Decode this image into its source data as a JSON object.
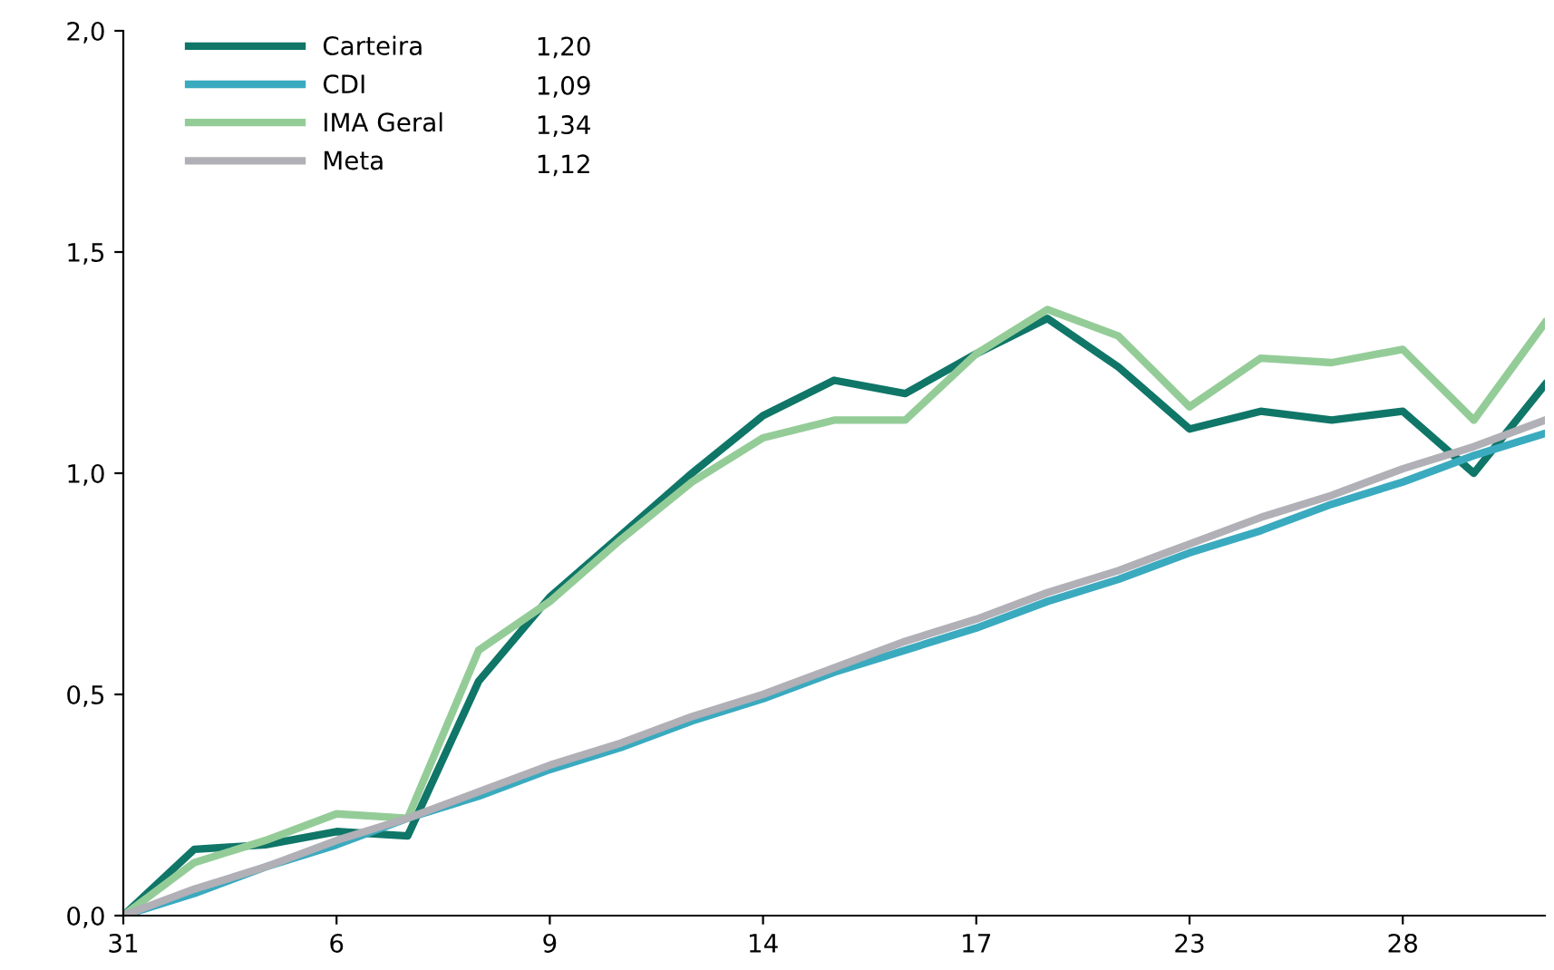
{
  "chart_data": {
    "type": "line",
    "categories": [
      "31",
      null,
      null,
      "6",
      null,
      null,
      "9",
      null,
      null,
      "14",
      null,
      null,
      "17",
      null,
      null,
      "23",
      null,
      null,
      "28",
      null,
      null
    ],
    "series": [
      {
        "name": "Carteira",
        "color": "#0f7668",
        "values": [
          0,
          0.15,
          0.16,
          0.19,
          0.18,
          0.53,
          0.72,
          0.86,
          1.0,
          1.13,
          1.21,
          1.18,
          1.27,
          1.35,
          1.24,
          1.1,
          1.14,
          1.12,
          1.14,
          1.0,
          1.2
        ]
      },
      {
        "name": "CDI",
        "color": "#3aaabf",
        "values": [
          0,
          0.05,
          0.11,
          0.16,
          0.22,
          0.27,
          0.33,
          0.38,
          0.44,
          0.49,
          0.55,
          0.6,
          0.65,
          0.71,
          0.76,
          0.82,
          0.87,
          0.93,
          0.98,
          1.04,
          1.09
        ]
      },
      {
        "name": "IMA Geral",
        "color": "#94cc98",
        "values": [
          0,
          0.12,
          0.17,
          0.23,
          0.22,
          0.6,
          0.71,
          0.85,
          0.98,
          1.08,
          1.12,
          1.12,
          1.27,
          1.37,
          1.31,
          1.15,
          1.26,
          1.25,
          1.28,
          1.12,
          1.34
        ]
      },
      {
        "name": "Meta",
        "color": "#b0b0b6",
        "values": [
          0,
          0.06,
          0.11,
          0.17,
          0.22,
          0.28,
          0.34,
          0.39,
          0.45,
          0.5,
          0.56,
          0.62,
          0.67,
          0.73,
          0.78,
          0.84,
          0.9,
          0.95,
          1.01,
          1.06,
          1.12
        ]
      }
    ],
    "annotations": [
      "1,20",
      "1,09",
      "1,34",
      "1,12"
    ],
    "ylim": [
      0,
      2
    ],
    "yticks": [
      {
        "value": 0,
        "label": "0,0"
      },
      {
        "value": 0.5,
        "label": "0,5"
      },
      {
        "value": 1,
        "label": "1,0"
      },
      {
        "value": 1.5,
        "label": "1,5"
      },
      {
        "value": 2,
        "label": "2,0"
      }
    ],
    "grid": false,
    "legend": "top left",
    "marker": "none",
    "line_style": "solid"
  }
}
